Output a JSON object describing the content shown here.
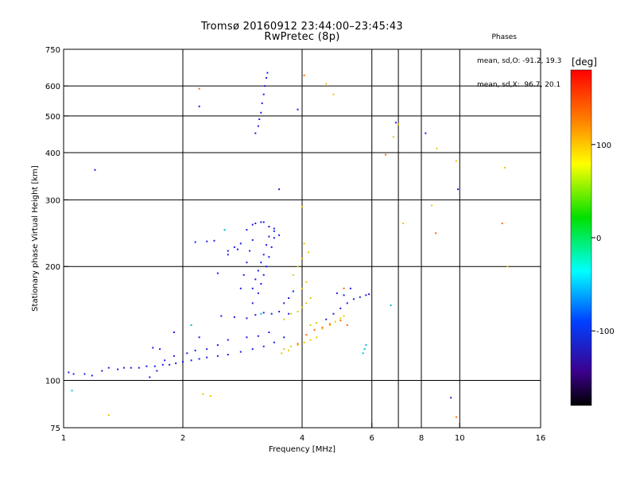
{
  "chart_data": {
    "type": "scatter",
    "title": "Tromsø 20160912 23:44:00–23:45:43",
    "subtitle": "RwPretec (8p)",
    "xlabel": "Frequency [MHz]",
    "ylabel": "Stationary phase Virtual Height [km]",
    "x_scale": "log",
    "y_scale": "log",
    "xlim": [
      1,
      16
    ],
    "ylim": [
      75,
      750
    ],
    "x_ticks": [
      1,
      2,
      4,
      6,
      8,
      10,
      16
    ],
    "x_tick_labels": [
      "1",
      "2",
      "4",
      "6",
      "8",
      "10",
      "16"
    ],
    "x_gridlines": [
      2,
      4,
      6,
      7,
      8,
      10
    ],
    "y_ticks": [
      75,
      100,
      200,
      300,
      400,
      500,
      600,
      750
    ],
    "y_tick_labels": [
      "75",
      "100",
      "200",
      "300",
      "400",
      "500",
      "600",
      "750"
    ],
    "y_gridlines": [
      100,
      200,
      300,
      400,
      500,
      600
    ],
    "grid": true,
    "stats": {
      "heading": "Phases",
      "line1": "mean, sd,O: -91.2, 19.3",
      "line2": "mean, sd,X:  96.7, 20.1"
    },
    "colorbar": {
      "label": "[deg]",
      "range": [
        -180,
        180
      ],
      "ticks": [
        100,
        0,
        -100
      ],
      "tick_labels": [
        "100",
        "0",
        "-100"
      ]
    },
    "series": [
      {
        "points": [
          [
            1.03,
            105
          ],
          [
            1.06,
            104
          ],
          [
            1.13,
            104
          ],
          [
            1.18,
            103
          ],
          [
            1.25,
            106
          ],
          [
            1.3,
            108
          ],
          [
            1.37,
            107
          ],
          [
            1.42,
            108
          ],
          [
            1.48,
            108
          ],
          [
            1.55,
            108
          ],
          [
            1.62,
            109
          ],
          [
            1.7,
            109
          ],
          [
            1.78,
            110
          ],
          [
            1.85,
            110
          ],
          [
            1.92,
            111
          ],
          [
            2.0,
            112
          ],
          [
            2.1,
            113
          ],
          [
            2.2,
            114
          ],
          [
            2.3,
            115
          ],
          [
            2.45,
            116
          ],
          [
            2.6,
            117
          ],
          [
            2.8,
            119
          ],
          [
            3.0,
            121
          ],
          [
            3.2,
            123
          ],
          [
            3.4,
            126
          ],
          [
            3.6,
            130
          ],
          [
            1.65,
            102
          ],
          [
            1.72,
            106
          ],
          [
            1.8,
            113
          ],
          [
            1.9,
            116
          ],
          [
            2.05,
            118
          ],
          [
            2.15,
            120
          ],
          [
            2.3,
            121
          ],
          [
            2.45,
            124
          ],
          [
            1.68,
            122
          ],
          [
            1.75,
            121
          ],
          [
            1.9,
            134
          ],
          [
            2.2,
            130
          ],
          [
            2.6,
            128
          ],
          [
            2.9,
            130
          ],
          [
            3.1,
            131
          ],
          [
            3.3,
            134
          ],
          [
            2.5,
            148
          ],
          [
            2.7,
            147
          ],
          [
            2.9,
            146
          ],
          [
            3.05,
            149
          ],
          [
            3.2,
            151
          ],
          [
            3.35,
            150
          ],
          [
            3.5,
            152
          ],
          [
            3.7,
            150
          ],
          [
            3.0,
            160
          ],
          [
            3.1,
            170
          ],
          [
            3.15,
            180
          ],
          [
            3.2,
            190
          ],
          [
            3.25,
            200
          ],
          [
            3.3,
            212
          ],
          [
            3.35,
            225
          ],
          [
            3.4,
            238
          ],
          [
            3.0,
            175
          ],
          [
            3.05,
            185
          ],
          [
            3.1,
            195
          ],
          [
            3.15,
            205
          ],
          [
            3.2,
            215
          ],
          [
            3.25,
            228
          ],
          [
            3.3,
            240
          ],
          [
            3.4,
            252
          ],
          [
            2.8,
            175
          ],
          [
            2.85,
            190
          ],
          [
            2.9,
            205
          ],
          [
            2.95,
            220
          ],
          [
            3.0,
            235
          ],
          [
            3.6,
            160
          ],
          [
            3.7,
            165
          ],
          [
            3.8,
            172
          ],
          [
            2.6,
            220
          ],
          [
            2.7,
            225
          ],
          [
            2.8,
            230
          ],
          [
            2.9,
            250
          ],
          [
            3.0,
            258
          ],
          [
            3.05,
            260
          ],
          [
            3.15,
            262
          ],
          [
            3.2,
            262
          ],
          [
            2.15,
            232
          ],
          [
            2.3,
            233
          ],
          [
            2.4,
            234
          ],
          [
            3.3,
            255
          ],
          [
            3.4,
            248
          ],
          [
            3.5,
            242
          ],
          [
            2.6,
            215
          ],
          [
            2.75,
            222
          ],
          [
            2.45,
            192
          ],
          [
            3.05,
            450
          ],
          [
            3.1,
            470
          ],
          [
            3.12,
            490
          ],
          [
            3.15,
            510
          ],
          [
            3.17,
            540
          ],
          [
            3.2,
            570
          ],
          [
            3.22,
            600
          ],
          [
            3.25,
            630
          ],
          [
            3.27,
            650
          ],
          [
            4.6,
            145
          ],
          [
            4.8,
            150
          ],
          [
            5.0,
            155
          ],
          [
            5.2,
            160
          ],
          [
            5.4,
            164
          ],
          [
            5.6,
            166
          ],
          [
            5.8,
            168
          ],
          [
            5.9,
            169
          ],
          [
            4.9,
            170
          ],
          [
            5.1,
            168
          ],
          [
            5.3,
            175
          ],
          [
            6.9,
            480
          ],
          [
            8.2,
            450
          ],
          [
            1.2,
            360
          ],
          [
            3.5,
            320
          ],
          [
            3.9,
            520
          ],
          [
            9.9,
            320
          ],
          [
            9.5,
            90
          ],
          [
            2.2,
            530
          ]
        ]
      },
      {
        "points": [
          [
            3.6,
            121
          ],
          [
            3.75,
            123
          ],
          [
            3.9,
            124
          ],
          [
            4.05,
            126
          ],
          [
            4.2,
            128
          ],
          [
            4.35,
            130
          ],
          [
            3.55,
            118
          ],
          [
            3.7,
            120
          ],
          [
            3.6,
            145
          ],
          [
            3.75,
            150
          ],
          [
            3.9,
            152
          ],
          [
            4.0,
            156
          ],
          [
            4.1,
            160
          ],
          [
            4.2,
            165
          ],
          [
            4.0,
            175
          ],
          [
            4.1,
            182
          ],
          [
            4.2,
            140
          ],
          [
            4.35,
            142
          ],
          [
            4.5,
            137
          ],
          [
            4.7,
            140
          ],
          [
            4.85,
            143
          ],
          [
            5.0,
            146
          ],
          [
            5.1,
            148
          ],
          [
            3.8,
            190
          ],
          [
            3.9,
            200
          ],
          [
            4.0,
            210
          ],
          [
            4.05,
            230
          ],
          [
            4.15,
            218
          ],
          [
            4.0,
            288
          ],
          [
            4.6,
            608
          ],
          [
            6.8,
            440
          ],
          [
            7.0,
            475
          ],
          [
            8.5,
            290
          ],
          [
            8.75,
            410
          ],
          [
            9.8,
            380
          ],
          [
            13.0,
            365
          ],
          [
            13.2,
            200
          ],
          [
            7.2,
            260
          ],
          [
            2.25,
            92
          ],
          [
            2.35,
            91
          ],
          [
            1.3,
            81
          ],
          [
            4.8,
            570
          ]
        ]
      },
      {
        "points": [
          [
            3.9,
            125
          ],
          [
            4.1,
            132
          ],
          [
            4.3,
            136
          ],
          [
            4.5,
            138
          ],
          [
            4.7,
            141
          ],
          [
            5.0,
            144
          ],
          [
            5.2,
            140
          ],
          [
            4.05,
            640
          ],
          [
            6.5,
            395
          ],
          [
            8.7,
            245
          ],
          [
            9.8,
            80
          ],
          [
            12.8,
            260
          ],
          [
            2.2,
            590
          ],
          [
            5.1,
            175
          ]
        ]
      },
      {
        "points": [
          [
            5.7,
            118
          ],
          [
            5.75,
            121
          ],
          [
            5.8,
            124
          ],
          [
            2.1,
            140
          ],
          [
            2.55,
            250
          ],
          [
            1.05,
            94
          ],
          [
            6.7,
            158
          ],
          [
            3.15,
            150
          ]
        ]
      }
    ]
  }
}
